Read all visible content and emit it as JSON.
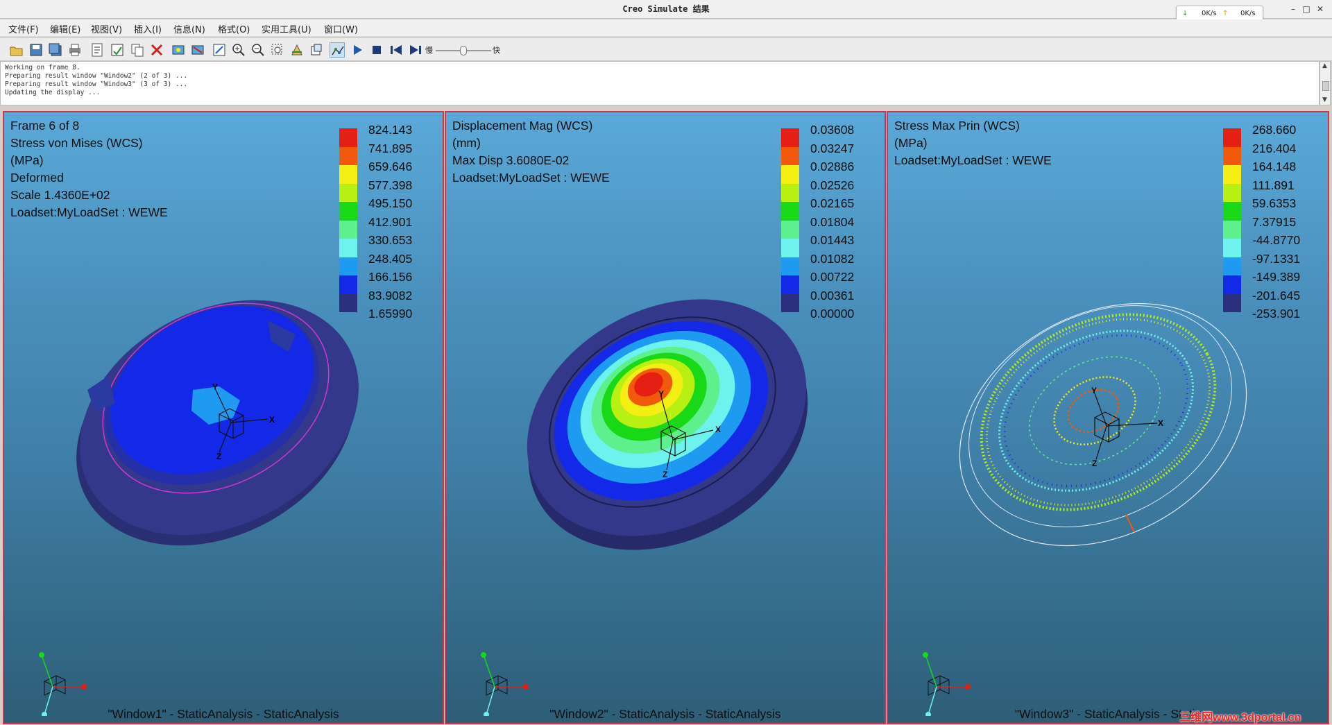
{
  "window": {
    "title": "Creo Simulate 结果",
    "net_down": "0K/s",
    "net_up": "0K/s"
  },
  "menu": [
    "文件(F)",
    "编辑(E)",
    "视图(V)",
    "插入(I)",
    "信息(N)",
    "格式(O)",
    "实用工具(U)",
    "窗口(W)"
  ],
  "toolbar": {
    "icons": [
      "open-icon",
      "save-icon",
      "save-as-icon",
      "print-icon",
      "report-icon",
      "edit-definition-icon",
      "copy-icon",
      "delete-icon",
      "show-icon",
      "hide-icon",
      "refit-icon",
      "zoom-in-icon",
      "zoom-out-icon",
      "zoom-window-icon",
      "orient-icon",
      "named-view-icon",
      "animate-icon",
      "play-icon",
      "stop-icon",
      "first-frame-icon",
      "last-frame-icon"
    ],
    "speed_slow": "慢",
    "speed_fast": "快",
    "speed_value": 0.5
  },
  "log": [
    "Working on frame 8.",
    "Preparing result window \"Window2\" (2 of 3) ...",
    "Preparing result window \"Window3\" (3 of 3) ...",
    "Updating the display ..."
  ],
  "colors": {
    "accent_border": "#c9384e",
    "legend": [
      "#e51f14",
      "#f05a0a",
      "#f5ee12",
      "#b8f014",
      "#18d818",
      "#5ef08c",
      "#6ef2ee",
      "#1e9af0",
      "#1428e8",
      "#2a2f7e"
    ]
  },
  "windows": [
    {
      "info": [
        "Frame 6 of 8",
        "Stress von Mises (WCS)",
        "(MPa)",
        "Deformed",
        "Scale  1.4360E+02",
        "Loadset:MyLoadSet :  WEWE"
      ],
      "legend": [
        "824.143",
        "741.895",
        "659.646",
        "577.398",
        "495.150",
        "412.901",
        "330.653",
        "248.405",
        "166.156",
        "83.9082",
        "1.65990"
      ],
      "footer": "\"Window1\" - StaticAnalysis - StaticAnalysis"
    },
    {
      "info": [
        "Displacement Mag (WCS)",
        "(mm)",
        "Max Disp  3.6080E-02",
        "Loadset:MyLoadSet :  WEWE"
      ],
      "legend": [
        "0.03608",
        "0.03247",
        "0.02886",
        "0.02526",
        "0.02165",
        "0.01804",
        "0.01443",
        "0.01082",
        "0.00722",
        "0.00361",
        "0.00000"
      ],
      "footer": "\"Window2\" - StaticAnalysis - StaticAnalysis"
    },
    {
      "info": [
        "Stress Max Prin (WCS)",
        "(MPa)",
        "Loadset:MyLoadSet :  WEWE"
      ],
      "legend": [
        "268.660",
        "216.404",
        "164.148",
        "111.891",
        "59.6353",
        "7.37915",
        "-44.8770",
        "-97.1331",
        "-149.389",
        "-201.645",
        "-253.901"
      ],
      "footer": "\"Window3\" - StaticAnalysis - Static"
    }
  ],
  "axes": {
    "x": "X",
    "y": "Y",
    "z": "Z"
  },
  "watermark": "三维网www.3dportal.cn"
}
